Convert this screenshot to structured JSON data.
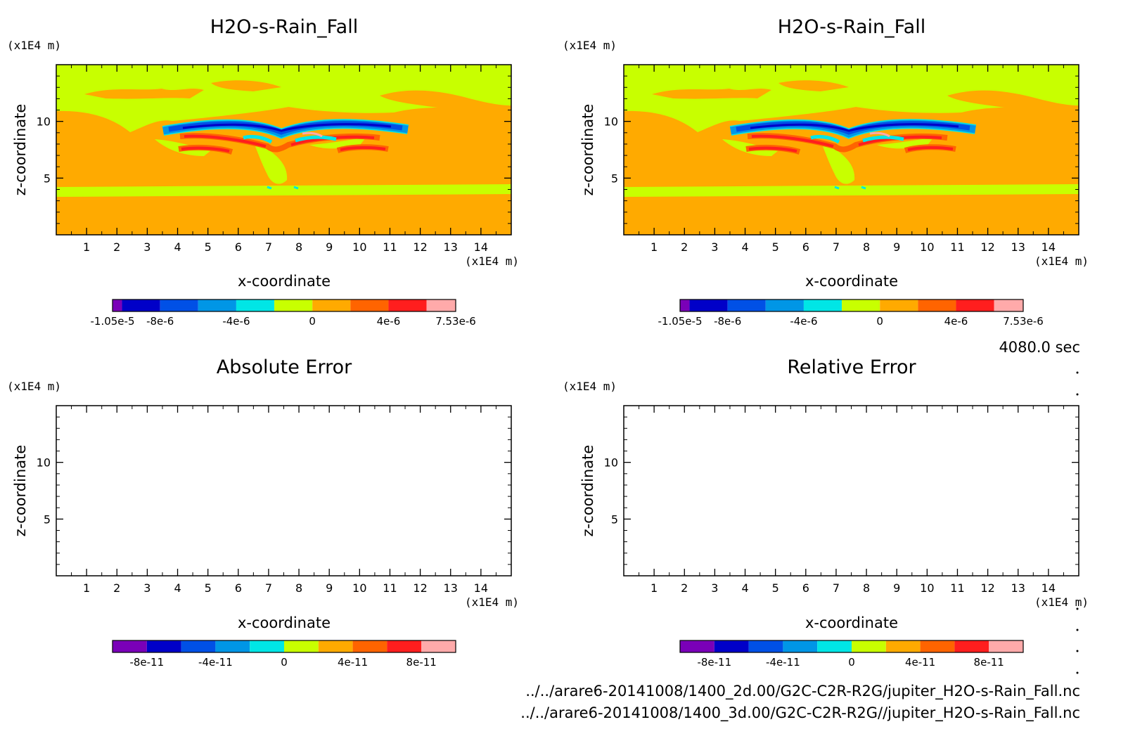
{
  "figure": {
    "time_label": "4080.0 sec",
    "files": [
      "../../arare6-20141008/1400_2d.00/G2C-C2R-R2G/jupiter_H2O-s-Rain_Fall.nc",
      "../../arare6-20141008/1400_3d.00/G2C-C2R-R2G//jupiter_H2O-s-Rain_Fall.nc"
    ]
  },
  "chart_data": [
    {
      "type": "heatmap",
      "title": "H2O-s-Rain_Fall",
      "xlabel": "x-coordinate",
      "ylabel": "z-coordinate",
      "x_unit": "(x1E4 m)",
      "y_unit": "(x1E4 m)",
      "xlim": [
        0,
        15
      ],
      "ylim": [
        0,
        15
      ],
      "x_ticks": [
        1,
        2,
        3,
        4,
        5,
        6,
        7,
        8,
        9,
        10,
        11,
        12,
        13,
        14
      ],
      "y_ticks": [
        5,
        10
      ],
      "colorbar": {
        "colors": [
          "#7a00b8",
          "#0000c8",
          "#0050e6",
          "#0096e6",
          "#00e6e6",
          "#c8ff00",
          "#ffaa00",
          "#ff6400",
          "#ff1e1e",
          "#ffaaaa"
        ],
        "levels": [
          -1.05e-05,
          -1e-05,
          -8e-06,
          -6e-06,
          -4e-06,
          -2e-06,
          0,
          2e-06,
          4e-06,
          6e-06,
          7.53e-06
        ],
        "tick_labels": [
          {
            "value": -1.05e-05,
            "label": "-1.05e-5"
          },
          {
            "value": -8e-06,
            "label": "-8e-6"
          },
          {
            "value": -4e-06,
            "label": "-4e-6"
          },
          {
            "value": 0,
            "label": "0"
          },
          {
            "value": 4e-06,
            "label": "4e-6"
          },
          {
            "value": 7.53e-06,
            "label": "7.53e-6"
          }
        ]
      }
    },
    {
      "type": "heatmap",
      "title": "H2O-s-Rain_Fall",
      "xlabel": "x-coordinate",
      "ylabel": "z-coordinate",
      "x_unit": "(x1E4 m)",
      "y_unit": "(x1E4 m)",
      "xlim": [
        0,
        15
      ],
      "ylim": [
        0,
        15
      ],
      "x_ticks": [
        1,
        2,
        3,
        4,
        5,
        6,
        7,
        8,
        9,
        10,
        11,
        12,
        13,
        14
      ],
      "y_ticks": [
        5,
        10
      ],
      "colorbar": {
        "colors": [
          "#7a00b8",
          "#0000c8",
          "#0050e6",
          "#0096e6",
          "#00e6e6",
          "#c8ff00",
          "#ffaa00",
          "#ff6400",
          "#ff1e1e",
          "#ffaaaa"
        ],
        "levels": [
          -1.05e-05,
          -1e-05,
          -8e-06,
          -6e-06,
          -4e-06,
          -2e-06,
          0,
          2e-06,
          4e-06,
          6e-06,
          7.53e-06
        ],
        "tick_labels": [
          {
            "value": -1.05e-05,
            "label": "-1.05e-5"
          },
          {
            "value": -8e-06,
            "label": "-8e-6"
          },
          {
            "value": -4e-06,
            "label": "-4e-6"
          },
          {
            "value": 0,
            "label": "0"
          },
          {
            "value": 4e-06,
            "label": "4e-6"
          },
          {
            "value": 7.53e-06,
            "label": "7.53e-6"
          }
        ]
      }
    },
    {
      "type": "heatmap",
      "title": "Absolute Error",
      "xlabel": "x-coordinate",
      "ylabel": "z-coordinate",
      "x_unit": "(x1E4 m)",
      "y_unit": "(x1E4 m)",
      "xlim": [
        0,
        15
      ],
      "ylim": [
        0,
        15
      ],
      "x_ticks": [
        1,
        2,
        3,
        4,
        5,
        6,
        7,
        8,
        9,
        10,
        11,
        12,
        13,
        14
      ],
      "y_ticks": [
        5,
        10
      ],
      "colorbar": {
        "colors": [
          "#7a00b8",
          "#0000c8",
          "#0050e6",
          "#0096e6",
          "#00e6e6",
          "#c8ff00",
          "#ffaa00",
          "#ff6400",
          "#ff1e1e",
          "#ffaaaa"
        ],
        "levels": [
          -1e-10,
          -8e-11,
          -6e-11,
          -4e-11,
          -2e-11,
          0,
          2e-11,
          4e-11,
          6e-11,
          8e-11,
          1e-10
        ],
        "tick_labels": [
          {
            "value": -8e-11,
            "label": "-8e-11"
          },
          {
            "value": -4e-11,
            "label": "-4e-11"
          },
          {
            "value": 0,
            "label": "0"
          },
          {
            "value": 4e-11,
            "label": "4e-11"
          },
          {
            "value": 8e-11,
            "label": "8e-11"
          }
        ]
      }
    },
    {
      "type": "heatmap",
      "title": "Relative Error",
      "xlabel": "x-coordinate",
      "ylabel": "z-coordinate",
      "x_unit": "(x1E4 m)",
      "y_unit": "(x1E4 m)",
      "xlim": [
        0,
        15
      ],
      "ylim": [
        0,
        15
      ],
      "x_ticks": [
        1,
        2,
        3,
        4,
        5,
        6,
        7,
        8,
        9,
        10,
        11,
        12,
        13,
        14
      ],
      "y_ticks": [
        5,
        10
      ],
      "colorbar": {
        "colors": [
          "#7a00b8",
          "#0000c8",
          "#0050e6",
          "#0096e6",
          "#00e6e6",
          "#c8ff00",
          "#ffaa00",
          "#ff6400",
          "#ff1e1e",
          "#ffaaaa"
        ],
        "levels": [
          -1e-10,
          -8e-11,
          -6e-11,
          -4e-11,
          -2e-11,
          0,
          2e-11,
          4e-11,
          6e-11,
          8e-11,
          1e-10
        ],
        "tick_labels": [
          {
            "value": -8e-11,
            "label": "-8e-11"
          },
          {
            "value": -4e-11,
            "label": "-4e-11"
          },
          {
            "value": 0,
            "label": "0"
          },
          {
            "value": 4e-11,
            "label": "4e-11"
          },
          {
            "value": 8e-11,
            "label": "8e-11"
          }
        ]
      }
    }
  ]
}
